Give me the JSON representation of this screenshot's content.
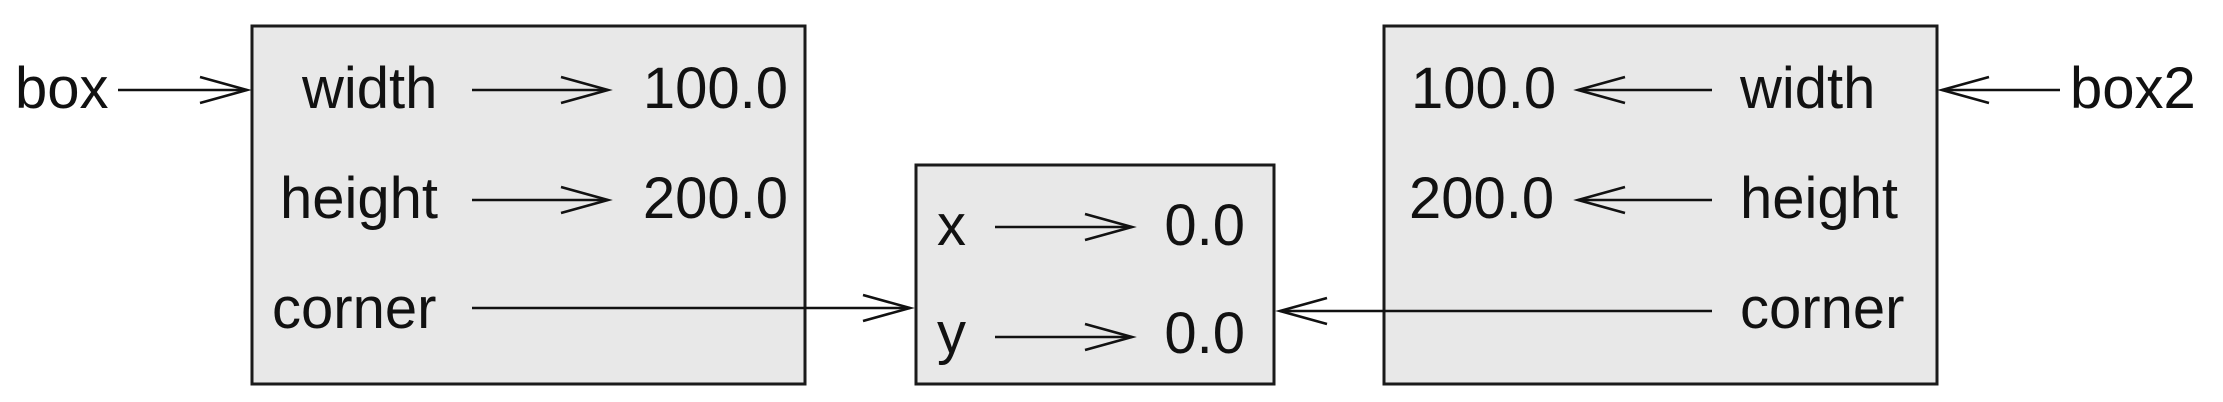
{
  "variables": {
    "box": "box",
    "box2": "box2"
  },
  "box1": {
    "width_attr": "width",
    "width_value": "100.0",
    "height_attr": "height",
    "height_value": "200.0",
    "corner_attr": "corner"
  },
  "point": {
    "x_attr": "x",
    "x_value": "0.0",
    "y_attr": "y",
    "y_value": "0.0"
  },
  "box2": {
    "width_attr": "width",
    "width_value": "100.0",
    "height_attr": "height",
    "height_value": "200.0",
    "corner_attr": "corner"
  },
  "colors": {
    "frame_fill": "#e8e8e8",
    "stroke": "#1a1a1a",
    "text": "#111111"
  }
}
